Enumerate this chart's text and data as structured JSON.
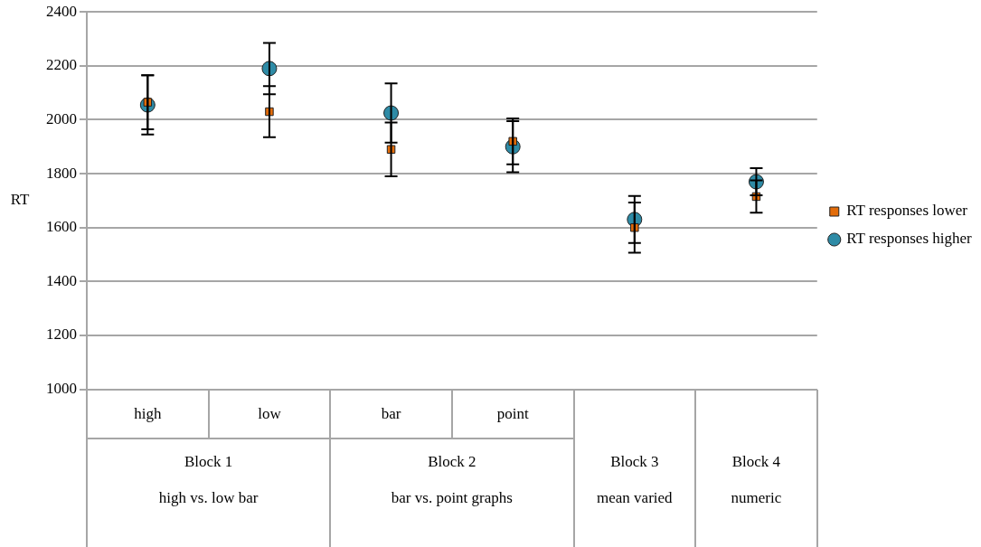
{
  "chart_data": {
    "type": "scatter",
    "ylabel": "RT",
    "categories": [
      "high",
      "low",
      "bar",
      "point",
      null,
      null
    ],
    "series": [
      {
        "name": "RT responses higher",
        "color": "#2e8ba6",
        "marker": "circle",
        "values": [
          2055,
          2190,
          2025,
          1900,
          1630,
          1770
        ],
        "errors": [
          110,
          95,
          110,
          95,
          87,
          50
        ]
      },
      {
        "name": "RT responses lower",
        "color": "#e36c0a",
        "marker": "square",
        "values": [
          2065,
          2030,
          1890,
          1920,
          1600,
          1715
        ],
        "errors": [
          100,
          95,
          100,
          85,
          93,
          60
        ]
      }
    ],
    "ylim": [
      1000,
      2400
    ],
    "yticks": [
      1000,
      1200,
      1400,
      1600,
      1800,
      2000,
      2200,
      2400
    ],
    "grid": "y",
    "legend": "right",
    "annotations": [
      "Block 1",
      "high vs. low bar",
      "Block 2",
      "bar vs. point graphs",
      "Block 3",
      "mean varied",
      "Block 4",
      "numeric"
    ]
  }
}
